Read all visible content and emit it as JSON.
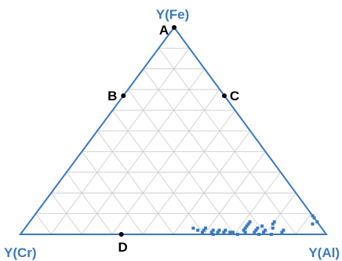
{
  "chart_data": {
    "type": "scatter",
    "subtype": "ternary",
    "title": "",
    "vertices": {
      "top": "Y(Fe)",
      "left": "Y(Cr)",
      "right": "Y(Al)"
    },
    "grid": true,
    "grid_step": 0.1,
    "colors": {
      "frame": "#3a78c2",
      "grid": "#c8c8c8",
      "points": "#3a78c2",
      "markers": "#000000"
    },
    "reference_points": [
      {
        "label": "A",
        "fe": 1.0,
        "cr": 0.0,
        "al": 0.0
      },
      {
        "label": "B",
        "fe": 0.67,
        "cr": 0.33,
        "al": 0.0
      },
      {
        "label": "C",
        "fe": 0.67,
        "cr": 0.0,
        "al": 0.33
      },
      {
        "label": "D",
        "fe": 0.0,
        "cr": 0.67,
        "al": 0.33
      }
    ],
    "series": [
      {
        "points": [
          {
            "fe": 0.03,
            "cr": 0.42,
            "al": 0.55
          },
          {
            "fe": 0.02,
            "cr": 0.41,
            "al": 0.57
          },
          {
            "fe": 0.01,
            "cr": 0.4,
            "al": 0.59
          },
          {
            "fe": 0.02,
            "cr": 0.39,
            "al": 0.59
          },
          {
            "fe": 0.03,
            "cr": 0.38,
            "al": 0.59
          },
          {
            "fe": 0.01,
            "cr": 0.37,
            "al": 0.62
          },
          {
            "fe": 0.02,
            "cr": 0.36,
            "al": 0.62
          },
          {
            "fe": 0.01,
            "cr": 0.35,
            "al": 0.64
          },
          {
            "fe": 0.02,
            "cr": 0.34,
            "al": 0.64
          },
          {
            "fe": 0.01,
            "cr": 0.33,
            "al": 0.66
          },
          {
            "fe": 0.02,
            "cr": 0.32,
            "al": 0.66
          },
          {
            "fe": 0.01,
            "cr": 0.31,
            "al": 0.68
          },
          {
            "fe": 0.0,
            "cr": 0.37,
            "al": 0.63
          },
          {
            "fe": 0.01,
            "cr": 0.3,
            "al": 0.69
          },
          {
            "fe": 0.0,
            "cr": 0.29,
            "al": 0.71
          },
          {
            "fe": 0.01,
            "cr": 0.26,
            "al": 0.73
          },
          {
            "fe": 0.02,
            "cr": 0.26,
            "al": 0.72
          },
          {
            "fe": 0.03,
            "cr": 0.25,
            "al": 0.72
          },
          {
            "fe": 0.04,
            "cr": 0.24,
            "al": 0.72
          },
          {
            "fe": 0.05,
            "cr": 0.23,
            "al": 0.72
          },
          {
            "fe": 0.06,
            "cr": 0.22,
            "al": 0.72
          },
          {
            "fe": 0.01,
            "cr": 0.23,
            "al": 0.76
          },
          {
            "fe": 0.02,
            "cr": 0.22,
            "al": 0.76
          },
          {
            "fe": 0.03,
            "cr": 0.21,
            "al": 0.76
          },
          {
            "fe": 0.0,
            "cr": 0.22,
            "al": 0.78
          },
          {
            "fe": 0.01,
            "cr": 0.2,
            "al": 0.79
          },
          {
            "fe": 0.02,
            "cr": 0.19,
            "al": 0.79
          },
          {
            "fe": 0.04,
            "cr": 0.19,
            "al": 0.77
          },
          {
            "fe": 0.06,
            "cr": 0.14,
            "al": 0.8
          },
          {
            "fe": 0.05,
            "cr": 0.15,
            "al": 0.8
          },
          {
            "fe": 0.03,
            "cr": 0.16,
            "al": 0.81
          },
          {
            "fe": 0.02,
            "cr": 0.13,
            "al": 0.85
          },
          {
            "fe": 0.0,
            "cr": 0.18,
            "al": 0.82
          },
          {
            "fe": 0.01,
            "cr": 0.14,
            "al": 0.85
          },
          {
            "fe": 0.09,
            "cr": 0.0,
            "al": 0.91
          },
          {
            "fe": 0.08,
            "cr": 0.0,
            "al": 0.92
          },
          {
            "fe": 0.06,
            "cr": 0.0,
            "al": 0.94
          },
          {
            "fe": 0.05,
            "cr": 0.02,
            "al": 0.93
          }
        ]
      }
    ]
  }
}
